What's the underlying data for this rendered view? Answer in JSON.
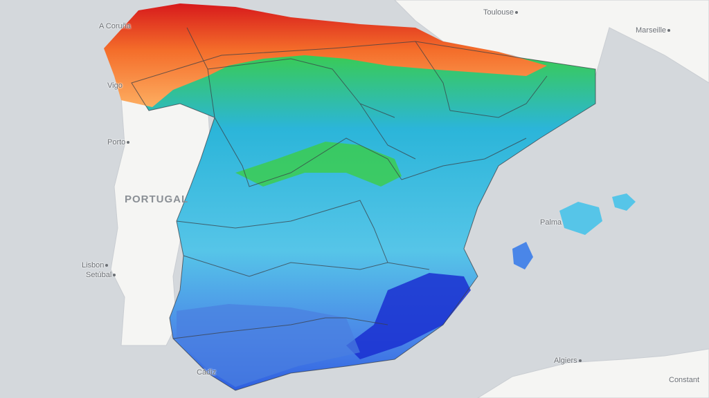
{
  "map": {
    "labels": {
      "toulouse": "Toulouse",
      "marseille": "Marseille",
      "a_coruna": "A Coruña",
      "vigo": "Vigo",
      "porto": "Porto",
      "portugal": "PORTUGAL",
      "lisbon": "Lisbon",
      "setubal": "Setúbal",
      "cadiz": "Cádiz",
      "palma": "Palma",
      "algiers": "Algiers",
      "constantine": "Constant"
    },
    "colors": {
      "sea": "#d4d8dc",
      "land": "#f5f5f3",
      "very_high": "#d7191c",
      "high": "#f46d2a",
      "mid_high": "#fdae61",
      "mid": "#3ccf3c",
      "mid_low": "#2bb5d9",
      "low": "#56c5e8",
      "lower": "#4a86e8",
      "lowest": "#1a2fd0"
    }
  }
}
